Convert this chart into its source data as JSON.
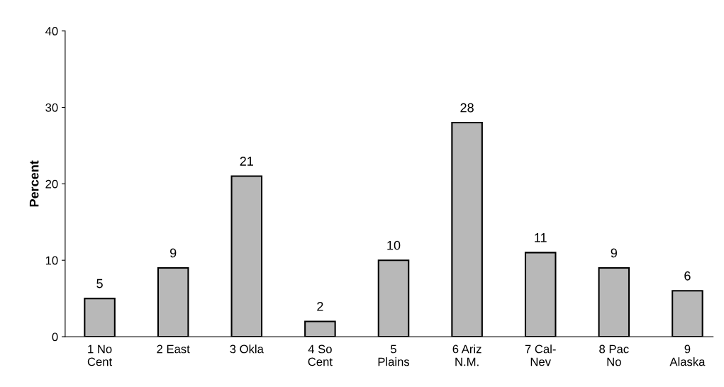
{
  "chart_data": {
    "type": "bar",
    "ylabel": "Percent",
    "categories": [
      "1 No\nCent",
      "2 East",
      "3 Okla",
      "4 So\nCent",
      "5\nPlains",
      "6 Ariz\nN.M.",
      "7 Cal-\nNev",
      "8 Pac\nNo",
      "9\nAlaska"
    ],
    "values": [
      5,
      9,
      21,
      2,
      10,
      28,
      11,
      9,
      6
    ],
    "color": "#b8b8b8",
    "ylim": [
      0,
      40
    ],
    "yticks": [
      0,
      10,
      20,
      30,
      40
    ],
    "grid": false,
    "data_labels": true
  }
}
